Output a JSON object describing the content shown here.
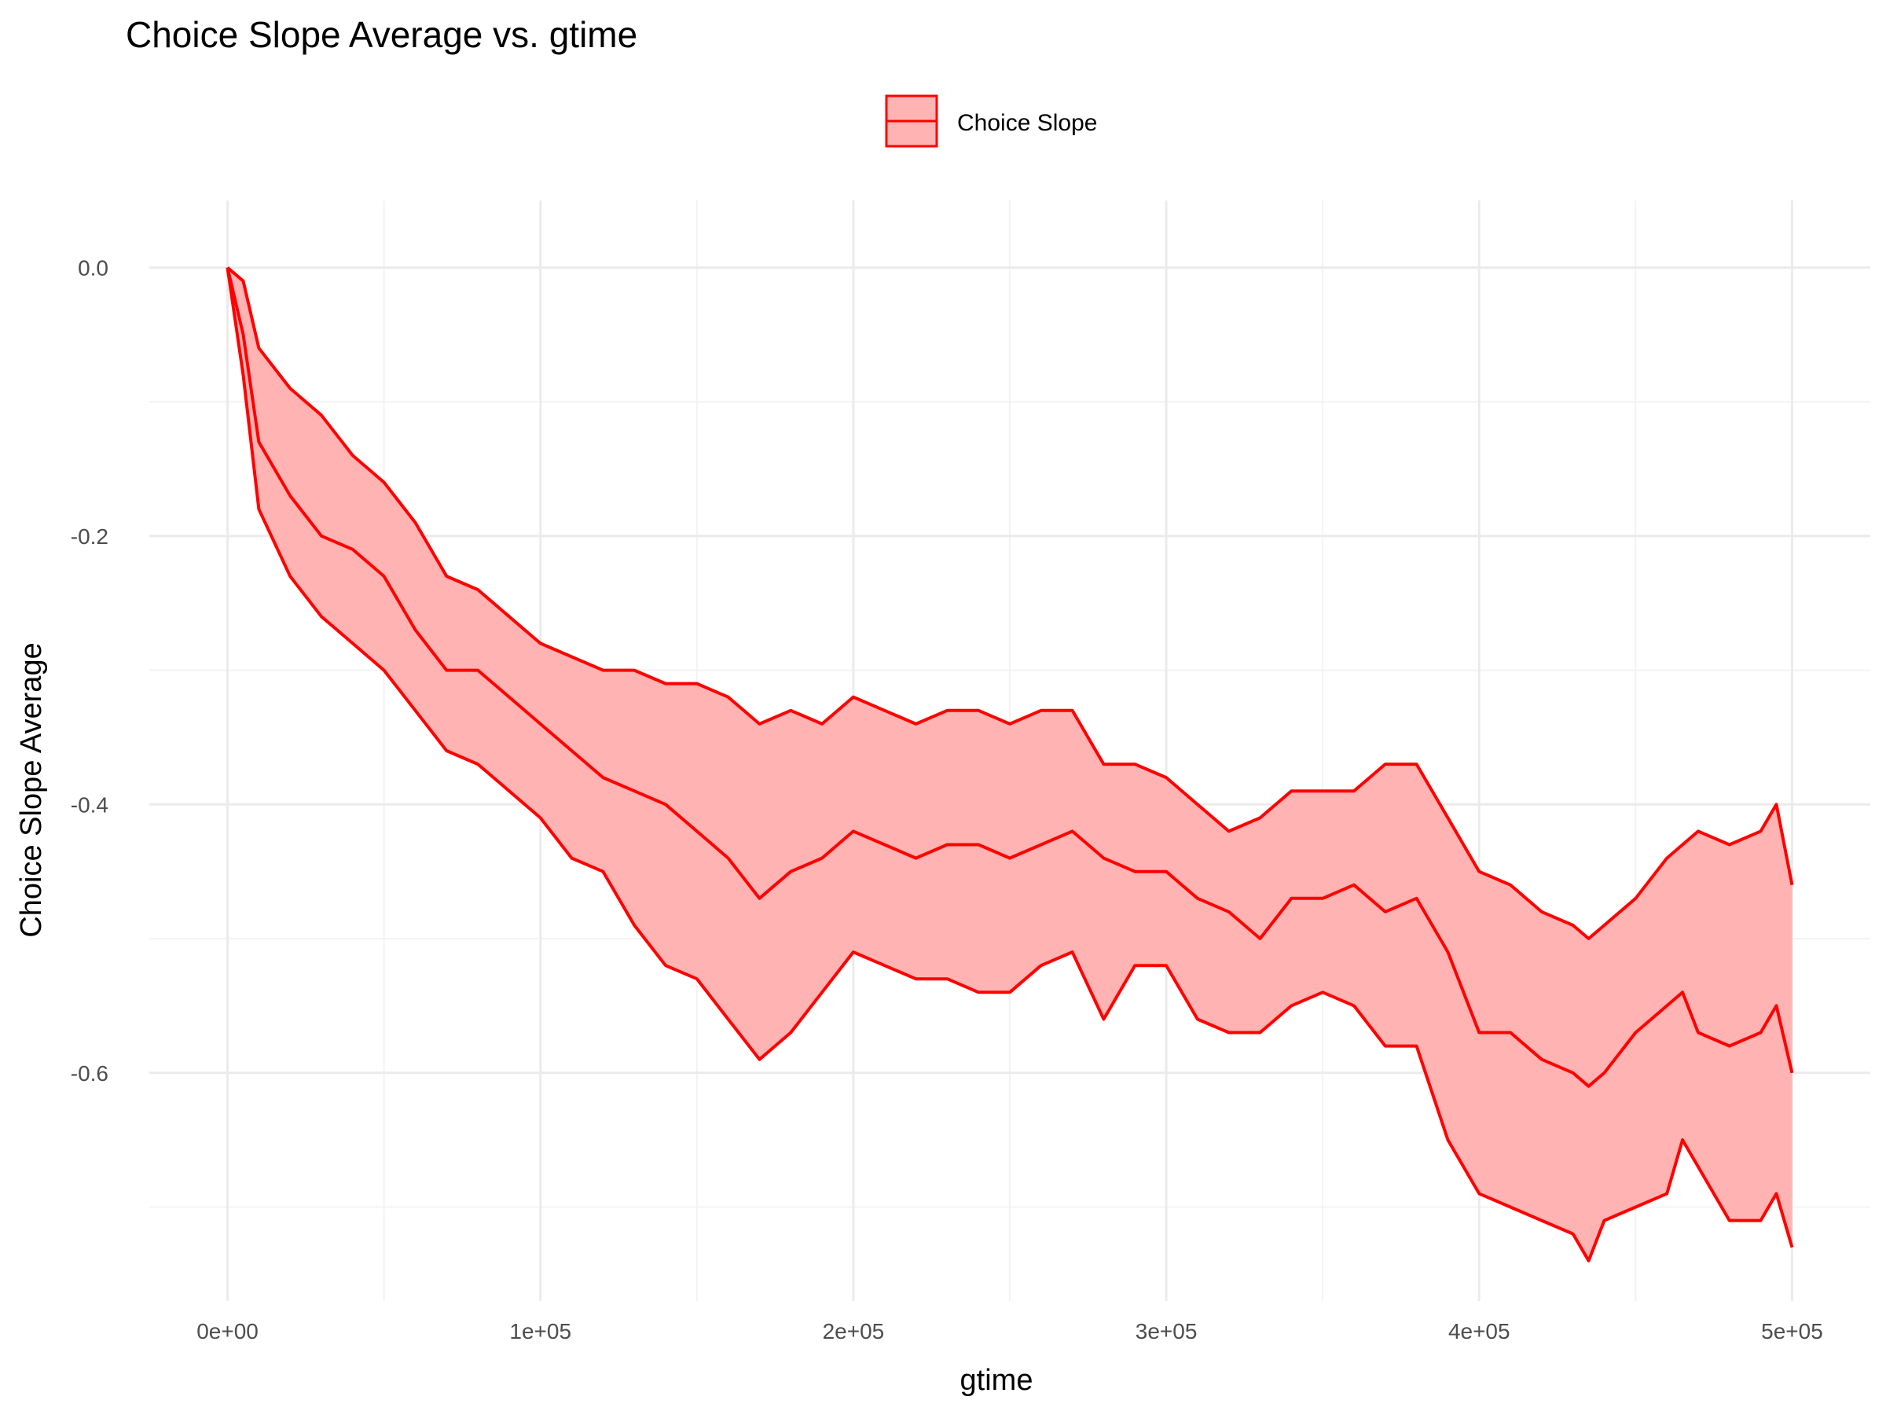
{
  "chart_data": {
    "type": "area",
    "title": "Choice Slope Average vs. gtime",
    "xlabel": "gtime",
    "ylabel": "Choice Slope Average",
    "xlim": [
      -25000,
      525000
    ],
    "ylim": [
      -0.77,
      0.05
    ],
    "x_ticks": [
      0,
      100000,
      200000,
      300000,
      400000,
      500000
    ],
    "x_tick_labels": [
      "0e+00",
      "1e+05",
      "2e+05",
      "3e+05",
      "4e+05",
      "5e+05"
    ],
    "y_ticks": [
      0.0,
      -0.2,
      -0.4,
      -0.6
    ],
    "y_tick_labels": [
      "0.0",
      "-0.2",
      "-0.4",
      "-0.6"
    ],
    "grid": true,
    "legend": {
      "position": "top",
      "entries": [
        "Choice Slope"
      ]
    },
    "colors": {
      "line": "#ff0000",
      "fill": "#ffb3b3"
    },
    "series": [
      {
        "name": "Choice Slope",
        "x": [
          0,
          5000,
          10000,
          20000,
          30000,
          40000,
          50000,
          60000,
          70000,
          80000,
          90000,
          100000,
          110000,
          120000,
          130000,
          140000,
          150000,
          160000,
          170000,
          180000,
          190000,
          200000,
          210000,
          220000,
          230000,
          240000,
          250000,
          260000,
          270000,
          280000,
          290000,
          300000,
          310000,
          320000,
          330000,
          340000,
          350000,
          360000,
          370000,
          380000,
          390000,
          400000,
          410000,
          420000,
          430000,
          435000,
          440000,
          450000,
          460000,
          465000,
          470000,
          480000,
          490000,
          495000,
          500000
        ],
        "mean": [
          0.0,
          -0.05,
          -0.13,
          -0.17,
          -0.2,
          -0.21,
          -0.23,
          -0.27,
          -0.3,
          -0.3,
          -0.32,
          -0.34,
          -0.36,
          -0.38,
          -0.39,
          -0.4,
          -0.42,
          -0.44,
          -0.47,
          -0.45,
          -0.44,
          -0.42,
          -0.43,
          -0.44,
          -0.43,
          -0.43,
          -0.44,
          -0.43,
          -0.42,
          -0.44,
          -0.45,
          -0.45,
          -0.47,
          -0.48,
          -0.5,
          -0.47,
          -0.47,
          -0.46,
          -0.48,
          -0.47,
          -0.51,
          -0.57,
          -0.57,
          -0.59,
          -0.6,
          -0.61,
          -0.6,
          -0.57,
          -0.55,
          -0.54,
          -0.57,
          -0.58,
          -0.57,
          -0.55,
          -0.6
        ],
        "lower": [
          0.0,
          -0.08,
          -0.18,
          -0.23,
          -0.26,
          -0.28,
          -0.3,
          -0.33,
          -0.36,
          -0.37,
          -0.39,
          -0.41,
          -0.44,
          -0.45,
          -0.49,
          -0.52,
          -0.53,
          -0.56,
          -0.59,
          -0.57,
          -0.54,
          -0.51,
          -0.52,
          -0.53,
          -0.53,
          -0.54,
          -0.54,
          -0.52,
          -0.51,
          -0.56,
          -0.52,
          -0.52,
          -0.56,
          -0.57,
          -0.57,
          -0.55,
          -0.54,
          -0.55,
          -0.58,
          -0.58,
          -0.65,
          -0.69,
          -0.7,
          -0.71,
          -0.72,
          -0.74,
          -0.71,
          -0.7,
          -0.69,
          -0.65,
          -0.67,
          -0.71,
          -0.71,
          -0.69,
          -0.73
        ],
        "upper": [
          0.0,
          -0.01,
          -0.06,
          -0.09,
          -0.11,
          -0.14,
          -0.16,
          -0.19,
          -0.23,
          -0.24,
          -0.26,
          -0.28,
          -0.29,
          -0.3,
          -0.3,
          -0.31,
          -0.31,
          -0.32,
          -0.34,
          -0.33,
          -0.34,
          -0.32,
          -0.33,
          -0.34,
          -0.33,
          -0.33,
          -0.34,
          -0.33,
          -0.33,
          -0.37,
          -0.37,
          -0.38,
          -0.4,
          -0.42,
          -0.41,
          -0.39,
          -0.39,
          -0.39,
          -0.37,
          -0.37,
          -0.41,
          -0.45,
          -0.46,
          -0.48,
          -0.49,
          -0.5,
          -0.49,
          -0.47,
          -0.44,
          -0.43,
          -0.42,
          -0.43,
          -0.42,
          -0.4,
          -0.46
        ]
      }
    ]
  }
}
